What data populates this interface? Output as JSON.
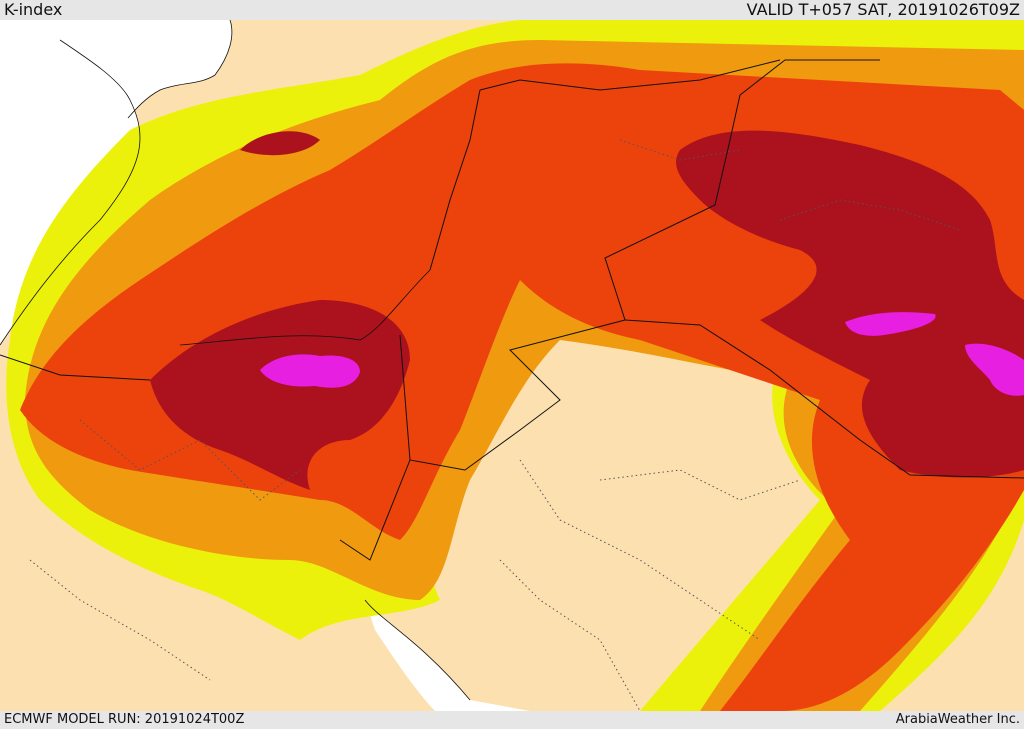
{
  "header": {
    "title": "K-index",
    "valid": "VALID T+057 SAT, 20191026T09Z"
  },
  "footer": {
    "model_run": "ECMWF MODEL RUN: 20191024T00Z",
    "credit": "ArabiaWeather Inc."
  },
  "colors": {
    "land": "#fde0b0",
    "sea": "#ffffff",
    "level_1": "#ebf10b",
    "level_2": "#ef9a0f",
    "level_3": "#ec420c",
    "level_4": "#ab121d",
    "level_5": "#e61fe0"
  }
}
